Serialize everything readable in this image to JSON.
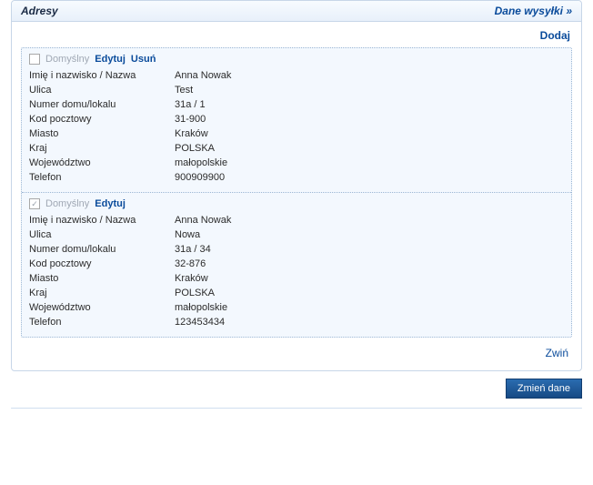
{
  "panel": {
    "title": "Adresy",
    "header_link": "Dane wysyłki »",
    "add_label": "Dodaj",
    "collapse_label": "Zwiń"
  },
  "labels": {
    "default": "Domyślny",
    "edit": "Edytuj",
    "delete": "Usuń",
    "name": "Imię i nazwisko / Nazwa",
    "street": "Ulica",
    "house": "Numer domu/lokalu",
    "postal": "Kod pocztowy",
    "city": "Miasto",
    "country": "Kraj",
    "province": "Województwo",
    "phone": "Telefon"
  },
  "addresses": [
    {
      "checked": false,
      "deletable": true,
      "name": "Anna Nowak",
      "street": "Test",
      "house": "31a / 1",
      "postal": "31-900",
      "city": "Kraków",
      "country": "POLSKA",
      "province": "małopolskie",
      "phone": "900909900"
    },
    {
      "checked": true,
      "deletable": false,
      "name": "Anna Nowak",
      "street": "Nowa",
      "house": "31a / 34",
      "postal": "32-876",
      "city": "Kraków",
      "country": "POLSKA",
      "province": "małopolskie",
      "phone": "123453434"
    }
  ],
  "buttons": {
    "save": "Zmień dane"
  }
}
